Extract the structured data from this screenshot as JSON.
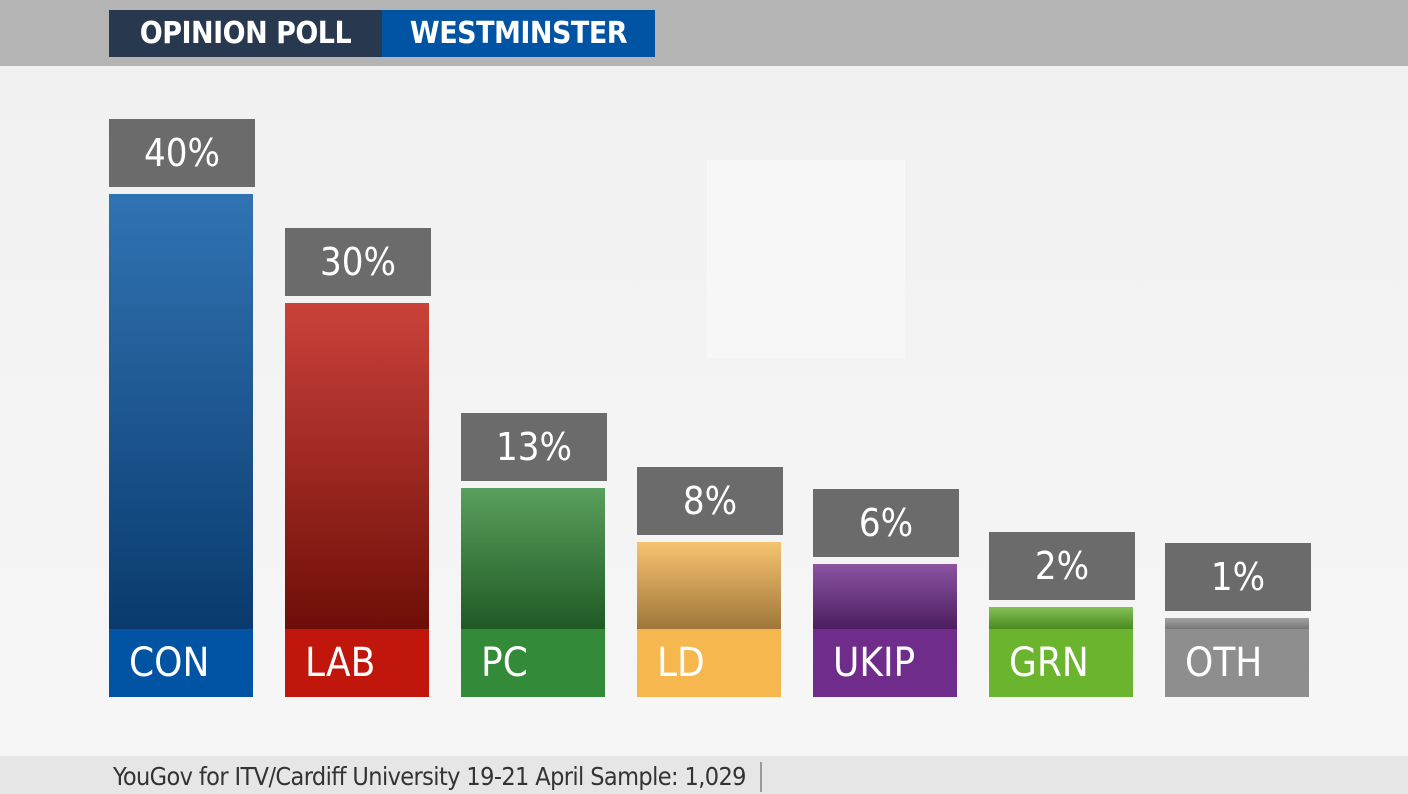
{
  "header": {
    "title_left": "OPINION POLL",
    "title_right": "WESTMINSTER"
  },
  "footer": {
    "source": "YouGov for ITV/Cardiff University 19-21 April Sample: 1,029"
  },
  "chart_data": {
    "type": "bar",
    "title": "OPINION POLL WESTMINSTER",
    "categories": [
      "CON",
      "LAB",
      "PC",
      "LD",
      "UKIP",
      "GRN",
      "OTH"
    ],
    "values": [
      40,
      30,
      13,
      8,
      6,
      2,
      1
    ],
    "value_labels": [
      "40%",
      "30%",
      "13%",
      "8%",
      "6%",
      "2%",
      "1%"
    ],
    "colors": [
      "#0054a3",
      "#c0160c",
      "#338a38",
      "#f6b74f",
      "#702c8b",
      "#6ab42e",
      "#8e8e8e"
    ],
    "dark_colors": [
      "#0a3a6e",
      "#6e0e08",
      "#1f5a24",
      "#a0773a",
      "#4c1d60",
      "#4a8a20",
      "#777777"
    ],
    "ylim": [
      0,
      40
    ],
    "xlabel": "",
    "ylabel": ""
  }
}
